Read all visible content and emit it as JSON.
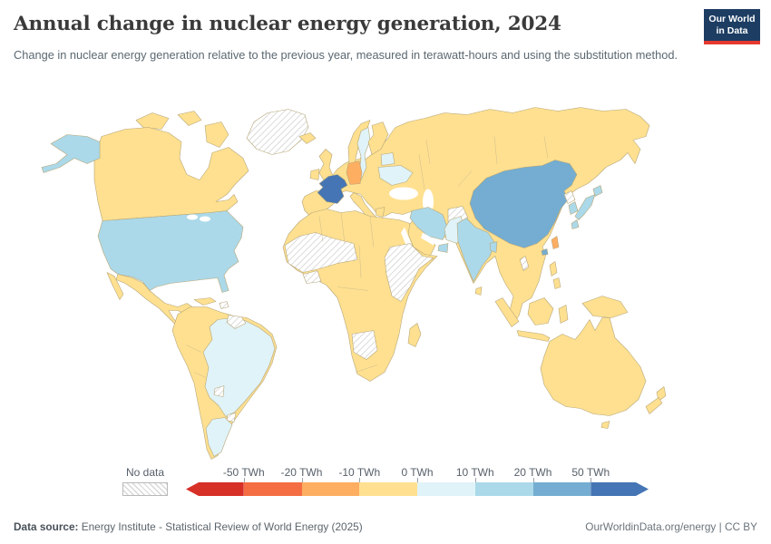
{
  "header": {
    "title": "Annual change in nuclear energy generation, 2024",
    "subtitle": "Change in nuclear energy generation relative to the previous year, measured in terawatt-hours and using the substitution method.",
    "logo": {
      "line1": "Our World",
      "line2": "in Data"
    }
  },
  "legend": {
    "no_data_label": "No data",
    "ticks": [
      "-50 TWh",
      "-20 TWh",
      "-10 TWh",
      "0 TWh",
      "10 TWh",
      "20 TWh",
      "50 TWh"
    ]
  },
  "footer": {
    "source_label": "Data source:",
    "source_text": " Energy Institute - Statistical Review of World Energy (2025)",
    "link_text": "OurWorldinData.org/energy",
    "separator": " | ",
    "license_text": "CC BY"
  },
  "chart_data": {
    "type": "choropleth-map",
    "title": "Annual change in nuclear energy generation, 2024",
    "unit": "TWh",
    "no_data_style": "hatched",
    "palette": [
      {
        "range": "less than -50 TWh",
        "color": "#d73027"
      },
      {
        "range": "-50 to -20 TWh",
        "color": "#f46d43"
      },
      {
        "range": "-20 to -10 TWh",
        "color": "#fdae61"
      },
      {
        "range": "-10 to 0 TWh",
        "color": "#fee090"
      },
      {
        "range": "0 to 10 TWh",
        "color": "#e0f3f8"
      },
      {
        "range": "10 to 20 TWh",
        "color": "#abd9e9"
      },
      {
        "range": "20 to 50 TWh",
        "color": "#74add1"
      },
      {
        "range": "more than 50 TWh",
        "color": "#4575b4"
      }
    ],
    "countries": {
      "greenland": "no-data",
      "canada": 3,
      "usa": 5,
      "mexico": 3,
      "cuba": 3,
      "hispaniola": "no-data",
      "south-america-other": 3,
      "brazil": 4,
      "argentina": 4,
      "guyanas": "no-data",
      "paraguay": "no-data",
      "uruguay": "no-data",
      "iceland": 3,
      "uk": 3,
      "ireland": 3,
      "norway": 3,
      "sweden": 4,
      "finland": 3,
      "denmark": 3,
      "eurasia-other": 3,
      "spain-portugal": 3,
      "italy": 3,
      "greece": 3,
      "france": 7,
      "germany": 2,
      "belarus": 4,
      "ukraine": 4,
      "turkey": 3,
      "iran": 5,
      "afghanistan": "no-data",
      "pakistan": 4,
      "india": 5,
      "sri-lanka": 3,
      "bangladesh": 5,
      "china": 6,
      "north-korea": "no-data",
      "south-korea": 5,
      "japan": 5,
      "taiwan": 2,
      "uae": 5,
      "laos": "no-data",
      "philippines": 3,
      "indonesia": 3,
      "papua-new-guinea": 3,
      "australia": 3,
      "new-zealand": 3,
      "africa-other": 3,
      "madagascar": 3,
      "western-africa": "no-data",
      "ghana-cote-divoire": "no-data",
      "eastern-africa": "no-data",
      "namibia-botswana": "no-data"
    }
  }
}
